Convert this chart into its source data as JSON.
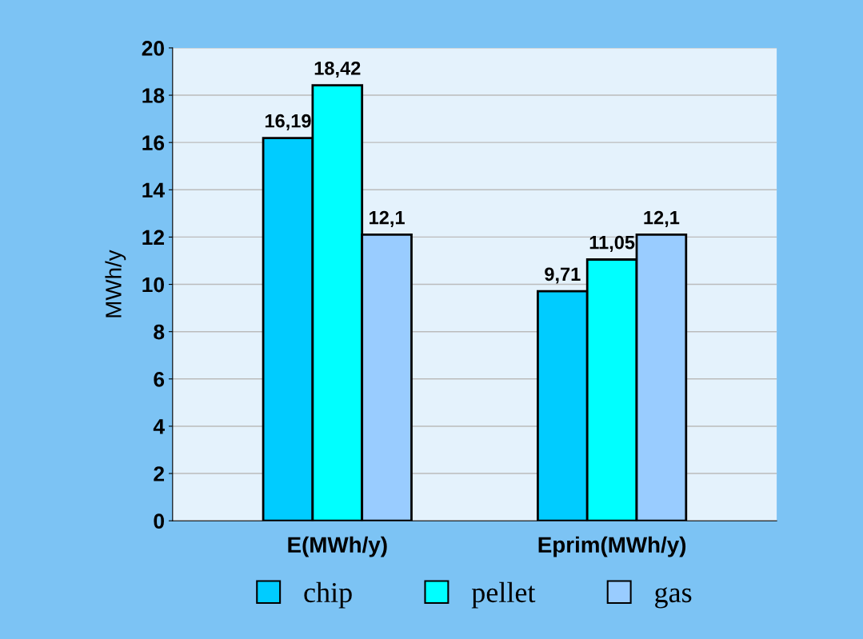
{
  "chart_data": {
    "type": "bar",
    "ylabel": "MWh/y",
    "categories": [
      "E(MWh/y)",
      "Eprim(MWh/y)"
    ],
    "series": [
      {
        "name": "chip",
        "color": "#00ccff",
        "values": [
          16.19,
          9.71
        ],
        "value_labels": [
          "16,19",
          "9,71"
        ]
      },
      {
        "name": "pellet",
        "color": "#00ffff",
        "values": [
          18.42,
          11.05
        ],
        "value_labels": [
          "18,42",
          "11,05"
        ]
      },
      {
        "name": "gas",
        "color": "#99ccff",
        "values": [
          12.1,
          12.1
        ],
        "value_labels": [
          "12,1",
          "12,1"
        ]
      }
    ],
    "ylim": [
      0,
      20
    ],
    "yticks": [
      0,
      2,
      4,
      6,
      8,
      10,
      12,
      14,
      16,
      18,
      20
    ],
    "grid": "y",
    "legend": "bottom"
  }
}
